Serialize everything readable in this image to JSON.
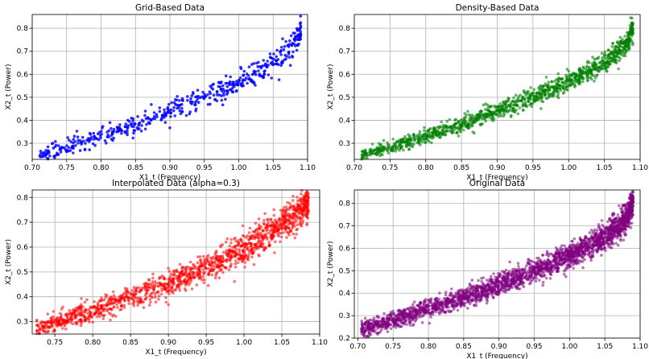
{
  "figure": {
    "layout": "2x2 grid of scatter plots",
    "background_color": "#ffffff",
    "grid_color": "#b0b0b0"
  },
  "chart_data": [
    {
      "type": "scatter",
      "title": "Grid-Based Data",
      "xlabel": "X1_t (Frequency)",
      "ylabel": "X2_t (Power)",
      "xlim": [
        0.7,
        1.1
      ],
      "ylim": [
        0.23,
        0.86
      ],
      "xticks": [
        "0.70",
        "0.75",
        "0.80",
        "0.85",
        "0.90",
        "0.95",
        "1.00",
        "1.05",
        "1.10"
      ],
      "yticks": [
        "0.3",
        "0.4",
        "0.5",
        "0.6",
        "0.7",
        "0.8"
      ],
      "grid": true,
      "color": "#0000ff",
      "opacity": 0.8,
      "n_points": 520,
      "x_range": [
        0.71,
        1.09
      ],
      "spread": 0.018,
      "trend": [
        [
          0.71,
          0.25
        ],
        [
          0.75,
          0.285
        ],
        [
          0.8,
          0.33
        ],
        [
          0.85,
          0.38
        ],
        [
          0.9,
          0.44
        ],
        [
          0.95,
          0.5
        ],
        [
          1.0,
          0.565
        ],
        [
          1.05,
          0.65
        ],
        [
          1.08,
          0.73
        ],
        [
          1.09,
          0.8
        ]
      ]
    },
    {
      "type": "scatter",
      "title": "Density-Based Data",
      "xlabel": "X1_t (Frequency)",
      "ylabel": "X2_t (Power)",
      "xlim": [
        0.7,
        1.1
      ],
      "ylim": [
        0.23,
        0.86
      ],
      "xticks": [
        "0.70",
        "0.75",
        "0.80",
        "0.85",
        "0.90",
        "0.95",
        "1.00",
        "1.05",
        "1.10"
      ],
      "yticks": [
        "0.3",
        "0.4",
        "0.5",
        "0.6",
        "0.7",
        "0.8"
      ],
      "grid": true,
      "color": "#008000",
      "opacity": 0.6,
      "n_points": 1300,
      "x_range": [
        0.71,
        1.09
      ],
      "spread": 0.016,
      "trend": [
        [
          0.71,
          0.25
        ],
        [
          0.75,
          0.285
        ],
        [
          0.8,
          0.33
        ],
        [
          0.85,
          0.38
        ],
        [
          0.9,
          0.44
        ],
        [
          0.95,
          0.5
        ],
        [
          1.0,
          0.565
        ],
        [
          1.05,
          0.65
        ],
        [
          1.08,
          0.73
        ],
        [
          1.09,
          0.8
        ]
      ]
    },
    {
      "type": "scatter",
      "title": "Interpolated Data (alpha=0.3)",
      "xlabel": "X1_t (Frequency)",
      "ylabel": "X2_t (Power)",
      "xlim": [
        0.72,
        1.1
      ],
      "ylim": [
        0.25,
        0.83
      ],
      "xticks": [
        "0.75",
        "0.80",
        "0.85",
        "0.90",
        "0.95",
        "1.00",
        "1.05",
        "1.10"
      ],
      "yticks": [
        "0.3",
        "0.4",
        "0.5",
        "0.6",
        "0.7",
        "0.8"
      ],
      "grid": true,
      "color": "#ff0000",
      "opacity": 0.55,
      "n_points": 1500,
      "x_range": [
        0.725,
        1.085
      ],
      "spread": 0.022,
      "trend": [
        [
          0.725,
          0.27
        ],
        [
          0.75,
          0.3
        ],
        [
          0.8,
          0.345
        ],
        [
          0.85,
          0.4
        ],
        [
          0.9,
          0.455
        ],
        [
          0.95,
          0.515
        ],
        [
          1.0,
          0.59
        ],
        [
          1.05,
          0.69
        ],
        [
          1.085,
          0.78
        ]
      ]
    },
    {
      "type": "scatter",
      "title": "Original Data",
      "xlabel": "X1_t (Frequency)",
      "ylabel": "X2_t (Power)",
      "xlim": [
        0.695,
        1.1
      ],
      "ylim": [
        0.2,
        0.86
      ],
      "xticks": [
        "0.70",
        "0.75",
        "0.80",
        "0.85",
        "0.90",
        "0.95",
        "1.00",
        "1.05",
        "1.10"
      ],
      "yticks": [
        "0.2",
        "0.3",
        "0.4",
        "0.5",
        "0.6",
        "0.7",
        "0.8"
      ],
      "grid": true,
      "color": "#800080",
      "opacity": 0.55,
      "n_points": 2600,
      "x_range": [
        0.705,
        1.09
      ],
      "spread": 0.02,
      "trend": [
        [
          0.705,
          0.24
        ],
        [
          0.75,
          0.28
        ],
        [
          0.8,
          0.33
        ],
        [
          0.85,
          0.38
        ],
        [
          0.9,
          0.44
        ],
        [
          0.95,
          0.5
        ],
        [
          1.0,
          0.565
        ],
        [
          1.05,
          0.65
        ],
        [
          1.08,
          0.73
        ],
        [
          1.09,
          0.8
        ]
      ]
    }
  ]
}
